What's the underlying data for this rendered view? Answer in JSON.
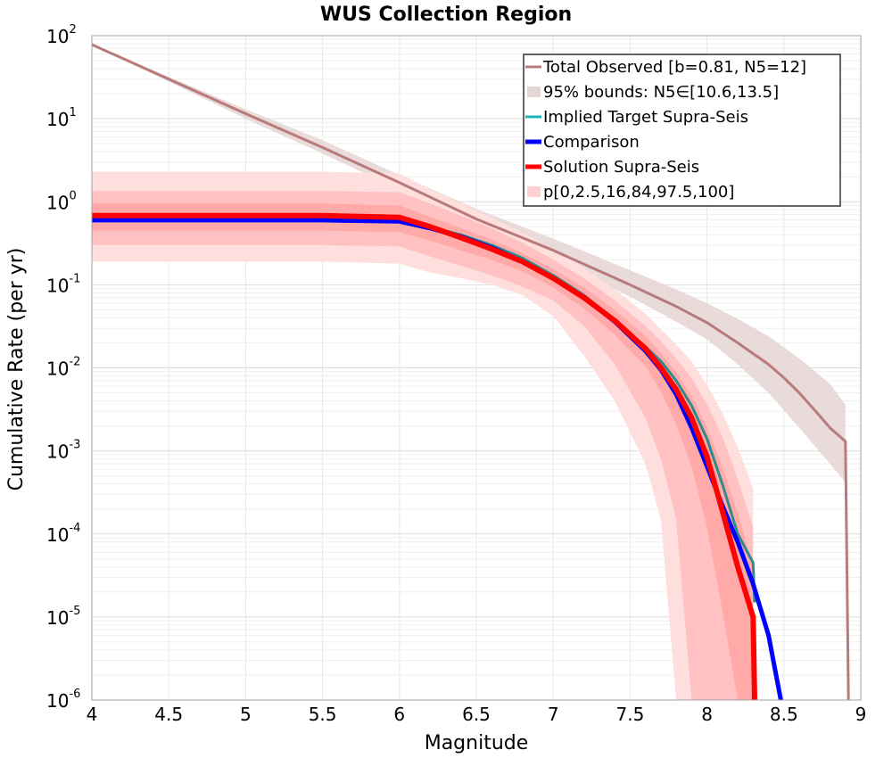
{
  "chart_data": {
    "type": "line",
    "title": "WUS Collection Region",
    "xlabel": "Magnitude",
    "ylabel": "Cumulative Rate (per yr)",
    "xlim": [
      4,
      9
    ],
    "ylim": [
      1e-06,
      100
    ],
    "yscale": "log",
    "grid": true,
    "legend_position": "top-right",
    "x_ticks": [
      "4",
      "4.5",
      "5",
      "5.5",
      "6",
      "6.5",
      "7",
      "7.5",
      "8",
      "8.5",
      "9"
    ],
    "y_ticks": [
      {
        "base": "10",
        "exp": "-6",
        "value": 1e-06
      },
      {
        "base": "10",
        "exp": "-5",
        "value": 1e-05
      },
      {
        "base": "10",
        "exp": "-4",
        "value": 0.0001
      },
      {
        "base": "10",
        "exp": "-3",
        "value": 0.001
      },
      {
        "base": "10",
        "exp": "-2",
        "value": 0.01
      },
      {
        "base": "10",
        "exp": "-1",
        "value": 0.1
      },
      {
        "base": "10",
        "exp": "0",
        "value": 1
      },
      {
        "base": "10",
        "exp": "1",
        "value": 10
      },
      {
        "base": "10",
        "exp": "2",
        "value": 100
      }
    ],
    "legend": [
      {
        "label": "Total Observed [b=0.81, N5=12]",
        "color": "#b87a7a",
        "kind": "line"
      },
      {
        "label": "95% bounds: N5∈[10.6,13.5]",
        "color": "#e6d5d5",
        "kind": "band"
      },
      {
        "label": "Implied Target Supra-Seis",
        "color": "#1fb3b3",
        "kind": "line"
      },
      {
        "label": "Comparison",
        "color": "#0000ff",
        "kind": "thick-line"
      },
      {
        "label": "Solution Supra-Seis",
        "color": "#ff0000",
        "kind": "thick-line"
      },
      {
        "label": "p[0,2.5,16,84,97.5,100]",
        "color": "#ffd0d0",
        "kind": "band"
      }
    ],
    "series": [
      {
        "name": "Total Observed [b=0.81, N5=12]",
        "color": "#b87a7a",
        "width": 3,
        "x": [
          4,
          4.5,
          5,
          5.5,
          6,
          6.5,
          7,
          7.5,
          7.8,
          8,
          8.2,
          8.4,
          8.5,
          8.6,
          8.7,
          8.8,
          8.9,
          8.92
        ],
        "y": [
          78,
          30,
          11.5,
          4.5,
          1.7,
          0.62,
          0.26,
          0.1,
          0.055,
          0.035,
          0.02,
          0.011,
          0.0076,
          0.005,
          0.0031,
          0.0019,
          0.0013,
          1e-06
        ]
      },
      {
        "name": "Implied Target Supra-Seis",
        "color": "#2e8b8b",
        "width": 3,
        "x": [
          4,
          4.5,
          5,
          5.5,
          6,
          6.2,
          6.4,
          6.6,
          6.8,
          7,
          7.2,
          7.4,
          7.6,
          7.7,
          7.8,
          7.9,
          8,
          8.1,
          8.2,
          8.3,
          8.31
        ],
        "y": [
          0.6,
          0.6,
          0.6,
          0.6,
          0.6,
          0.5,
          0.4,
          0.3,
          0.21,
          0.13,
          0.075,
          0.038,
          0.018,
          0.012,
          0.007,
          0.0035,
          0.0014,
          0.0004,
          0.0001,
          4.5e-05,
          1.5e-05
        ]
      },
      {
        "name": "Comparison",
        "color": "#0000ff",
        "width": 5,
        "x": [
          4,
          4.5,
          5,
          5.5,
          6,
          6.2,
          6.4,
          6.6,
          6.8,
          7,
          7.2,
          7.4,
          7.6,
          7.7,
          7.8,
          7.9,
          8,
          8.1,
          8.2,
          8.3,
          8.4,
          8.48
        ],
        "y": [
          0.6,
          0.6,
          0.6,
          0.6,
          0.58,
          0.48,
          0.38,
          0.28,
          0.19,
          0.12,
          0.07,
          0.036,
          0.016,
          0.0095,
          0.0048,
          0.0019,
          0.00065,
          0.00022,
          8e-05,
          2.5e-05,
          6e-06,
          1e-06
        ]
      },
      {
        "name": "Solution Supra-Seis",
        "color": "#ff0000",
        "width": 6,
        "x": [
          4,
          4.5,
          5,
          5.5,
          6,
          6.2,
          6.4,
          6.6,
          6.8,
          7,
          7.2,
          7.4,
          7.6,
          7.7,
          7.8,
          7.9,
          8,
          8.1,
          8.2,
          8.3,
          8.31
        ],
        "y": [
          0.68,
          0.68,
          0.68,
          0.68,
          0.65,
          0.5,
          0.37,
          0.27,
          0.19,
          0.12,
          0.07,
          0.037,
          0.017,
          0.01,
          0.0055,
          0.0025,
          0.00085,
          0.00019,
          4e-05,
          1e-05,
          1e-06
        ]
      }
    ],
    "bands": [
      {
        "name": "95% bounds: N5∈[10.6,13.5]",
        "color": "#e6d5d5",
        "opacity": 0.85,
        "x": [
          4,
          4.5,
          5,
          5.5,
          6,
          6.5,
          7,
          7.5,
          7.8,
          8,
          8.2,
          8.4,
          8.6,
          8.8,
          8.9
        ],
        "upper": [
          78,
          32,
          13,
          5.5,
          2.1,
          0.82,
          0.36,
          0.15,
          0.088,
          0.06,
          0.039,
          0.024,
          0.013,
          0.0064,
          0.0036
        ],
        "lower": [
          78,
          28,
          10,
          3.8,
          1.4,
          0.5,
          0.2,
          0.072,
          0.036,
          0.022,
          0.011,
          0.005,
          0.0019,
          0.0007,
          0.00042
        ]
      },
      {
        "name": "p 0-100",
        "color": "#ffdede",
        "opacity": 1,
        "x": [
          4,
          4.5,
          5,
          5.5,
          6,
          6.2,
          6.4,
          6.6,
          6.8,
          7,
          7.2,
          7.4,
          7.6,
          7.7,
          7.8,
          7.9,
          8,
          8.1,
          8.2,
          8.3
        ],
        "upper": [
          2.3,
          2.3,
          2.3,
          2.3,
          2.2,
          1.4,
          0.95,
          0.65,
          0.42,
          0.27,
          0.16,
          0.088,
          0.045,
          0.029,
          0.019,
          0.012,
          0.0062,
          0.0029,
          0.0011,
          0.00035
        ],
        "lower": [
          0.19,
          0.19,
          0.19,
          0.19,
          0.18,
          0.14,
          0.12,
          0.1,
          0.075,
          0.042,
          0.014,
          0.004,
          0.0007,
          0.00015,
          1e-06,
          1e-06,
          1e-06,
          1e-06,
          1e-06,
          1e-06
        ]
      },
      {
        "name": "p 2.5-97.5",
        "color": "#ffb7b7",
        "opacity": 0.75,
        "x": [
          4,
          4.5,
          5,
          5.5,
          6,
          6.2,
          6.4,
          6.6,
          6.8,
          7,
          7.2,
          7.4,
          7.6,
          7.7,
          7.8,
          7.9,
          8,
          8.1,
          8.2,
          8.3
        ],
        "upper": [
          1.35,
          1.35,
          1.35,
          1.35,
          1.3,
          0.95,
          0.68,
          0.48,
          0.32,
          0.2,
          0.12,
          0.065,
          0.032,
          0.021,
          0.013,
          0.0075,
          0.0036,
          0.0015,
          0.00045,
          0.00012
        ],
        "lower": [
          0.3,
          0.3,
          0.3,
          0.3,
          0.29,
          0.22,
          0.17,
          0.13,
          0.095,
          0.065,
          0.032,
          0.011,
          0.0025,
          0.0008,
          0.00015,
          1e-06,
          1e-06,
          1e-06,
          1e-06,
          1e-06
        ]
      },
      {
        "name": "p 16-84",
        "color": "#ff9a9a",
        "opacity": 0.6,
        "x": [
          4,
          4.5,
          5,
          5.5,
          6,
          6.2,
          6.4,
          6.6,
          6.8,
          7,
          7.2,
          7.4,
          7.6,
          7.7,
          7.8,
          7.9,
          8,
          8.1,
          8.2,
          8.3
        ],
        "upper": [
          0.95,
          0.95,
          0.95,
          0.95,
          0.9,
          0.66,
          0.48,
          0.35,
          0.24,
          0.155,
          0.092,
          0.05,
          0.024,
          0.015,
          0.0088,
          0.0046,
          0.0019,
          0.00065,
          0.00018,
          4e-05
        ],
        "lower": [
          0.45,
          0.45,
          0.45,
          0.45,
          0.43,
          0.34,
          0.26,
          0.2,
          0.145,
          0.093,
          0.052,
          0.025,
          0.0105,
          0.0052,
          0.0021,
          0.00065,
          0.00012,
          1.2e-05,
          1e-06,
          1e-06
        ]
      }
    ]
  }
}
